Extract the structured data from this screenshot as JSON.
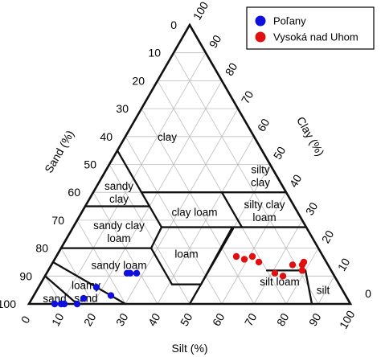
{
  "chart_data": {
    "type": "scatter",
    "subtype": "soil-texture-triangle",
    "axes": {
      "sand": {
        "label": "Sand (%)",
        "ticks": [
          0,
          10,
          20,
          30,
          40,
          50,
          60,
          70,
          80,
          90,
          100
        ]
      },
      "clay": {
        "label": "Clay (%)",
        "ticks": [
          10,
          20,
          30,
          40,
          50,
          60,
          70,
          80,
          90,
          100
        ],
        "base_tick": "0"
      },
      "silt": {
        "label": "Silt (%)",
        "ticks": [
          0,
          10,
          20,
          30,
          40,
          50,
          60,
          70,
          80,
          90,
          100
        ]
      }
    },
    "grid": true,
    "regions": [
      {
        "name": "clay",
        "lines": [
          "clay"
        ],
        "label_at": {
          "sand": 27,
          "clay": 60
        }
      },
      {
        "name": "silty clay",
        "lines": [
          "silty",
          "clay"
        ],
        "label_at": {
          "sand": 5,
          "clay": 46
        }
      },
      {
        "name": "sandy clay",
        "lines": [
          "sandy",
          "clay"
        ],
        "label_at": {
          "sand": 52,
          "clay": 40
        }
      },
      {
        "name": "silty clay loam",
        "lines": [
          "silty clay",
          "loam"
        ],
        "label_at": {
          "sand": 10,
          "clay": 33.5
        }
      },
      {
        "name": "clay loam",
        "lines": [
          "clay loam"
        ],
        "label_at": {
          "sand": 32,
          "clay": 33
        }
      },
      {
        "name": "sandy clay loam",
        "lines": [
          "sandy clay",
          "loam"
        ],
        "label_at": {
          "sand": 59,
          "clay": 26
        }
      },
      {
        "name": "loam",
        "lines": [
          "loam"
        ],
        "label_at": {
          "sand": 42,
          "clay": 18
        }
      },
      {
        "name": "silt loam",
        "lines": [
          "silt loam"
        ],
        "label_at": {
          "sand": 18,
          "clay": 8
        }
      },
      {
        "name": "sandy loam",
        "lines": [
          "sandy loam"
        ],
        "label_at": {
          "sand": 65,
          "clay": 14
        }
      },
      {
        "name": "silt",
        "lines": [
          "silt"
        ],
        "label_at": {
          "sand": 6,
          "clay": 5
        }
      },
      {
        "name": "loamy sand",
        "lines": [
          "loamy",
          "sand"
        ],
        "label_at": {
          "sand": 80,
          "clay": 4.5
        }
      },
      {
        "name": "sand",
        "lines": [
          "sand"
        ],
        "label_at": {
          "sand": 91,
          "clay": 2
        }
      }
    ],
    "series": [
      {
        "name": "Poľany",
        "color": "#1010dd",
        "points": [
          {
            "sand": 92,
            "clay": 0
          },
          {
            "sand": 90,
            "clay": 0
          },
          {
            "sand": 89,
            "clay": 0
          },
          {
            "sand": 85,
            "clay": 0
          },
          {
            "sand": 82,
            "clay": 2
          },
          {
            "sand": 76,
            "clay": 6
          },
          {
            "sand": 73,
            "clay": 3
          },
          {
            "sand": 64,
            "clay": 11
          },
          {
            "sand": 63,
            "clay": 11
          },
          {
            "sand": 61,
            "clay": 11
          }
        ]
      },
      {
        "name": "Vysoká nad Uhom",
        "color": "#e01010",
        "points": [
          {
            "sand": 27,
            "clay": 17
          },
          {
            "sand": 25,
            "clay": 16
          },
          {
            "sand": 22,
            "clay": 17
          },
          {
            "sand": 21,
            "clay": 15
          },
          {
            "sand": 18,
            "clay": 11
          },
          {
            "sand": 16,
            "clay": 10
          },
          {
            "sand": 11,
            "clay": 14
          },
          {
            "sand": 9,
            "clay": 12
          },
          {
            "sand": 8,
            "clay": 14
          },
          {
            "sand": 7,
            "clay": 15
          }
        ]
      }
    ],
    "legend": {
      "position": "top-right"
    }
  }
}
